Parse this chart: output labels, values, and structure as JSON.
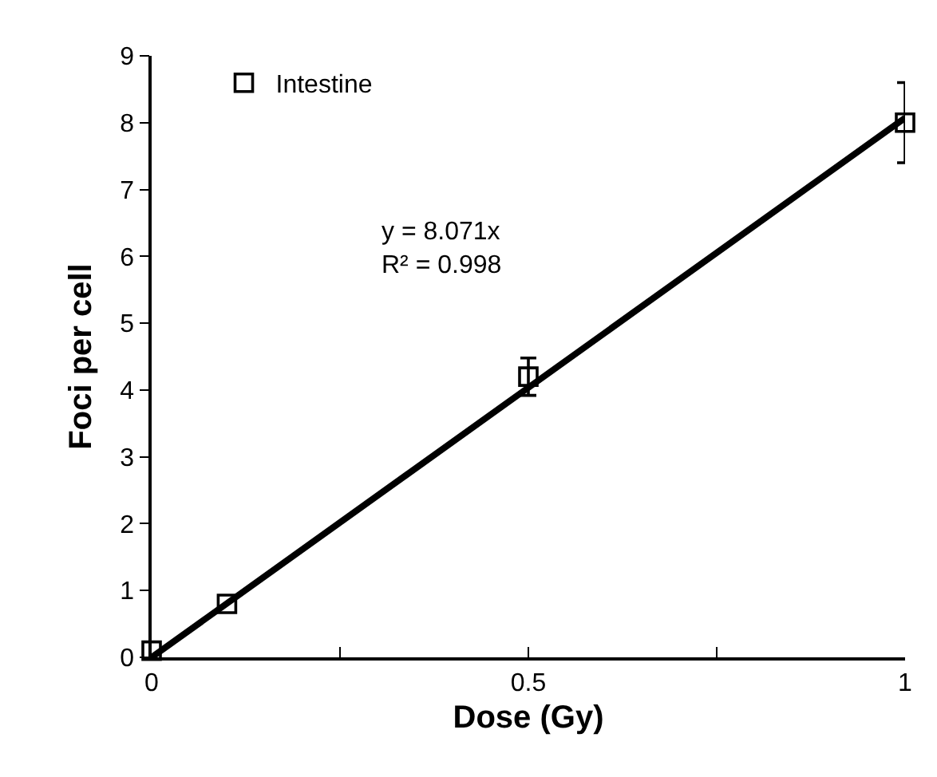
{
  "chart_data": {
    "type": "scatter",
    "xlabel": "Dose (Gy)",
    "ylabel": "Foci per cell",
    "x": [
      0,
      0.1,
      0.5,
      1
    ],
    "series": [
      {
        "name": "Intestine",
        "color": "#000000",
        "values": [
          0.1,
          0.8,
          4.2,
          8.0
        ],
        "errors": [
          null,
          null,
          0.28,
          0.6
        ],
        "marker": "square"
      },
      {
        "type": "line",
        "color": "#000000",
        "x": [
          0,
          1
        ],
        "values": [
          0,
          8.071
        ],
        "marker": "none",
        "line_style": "solid"
      }
    ],
    "annotations": [
      "y = 8.071x\nR² = 0.998"
    ],
    "xlim": [
      0,
      1
    ],
    "xticks": [
      0,
      {
        "value": 0.25,
        "label": null
      },
      0.5,
      {
        "value": 0.75,
        "label": null
      },
      1
    ],
    "ylim": [
      0,
      9
    ],
    "yticks": [
      0,
      1,
      2,
      3,
      4,
      5,
      6,
      7,
      8,
      9
    ],
    "grid": false,
    "legend": "top left"
  }
}
